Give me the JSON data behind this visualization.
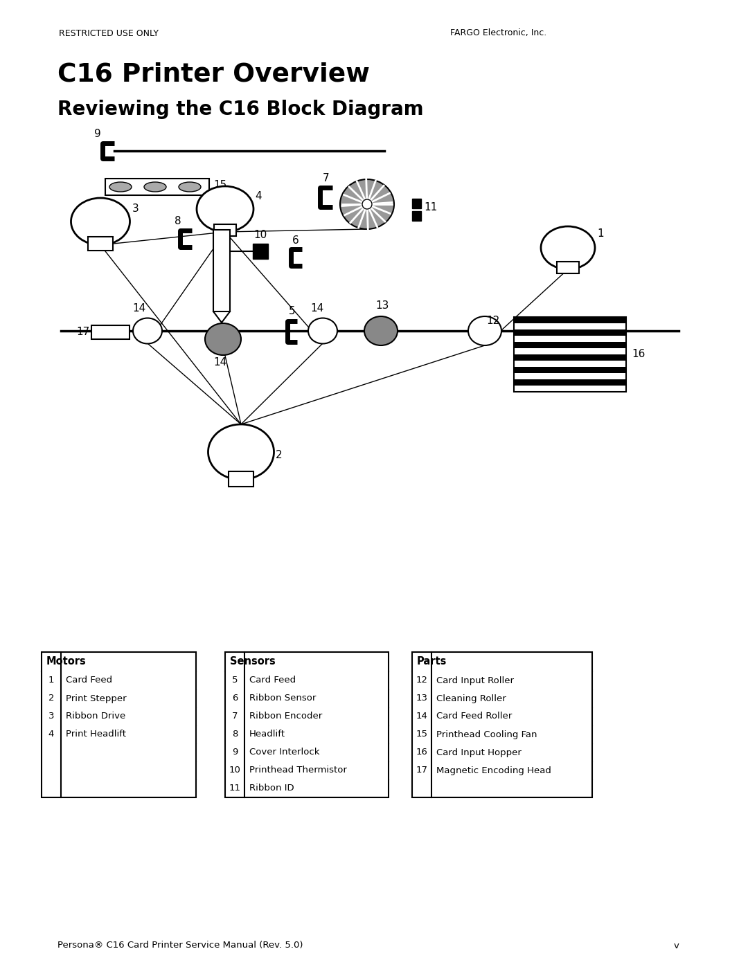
{
  "header_left": "RESTRICTED USE ONLY",
  "header_right": "FARGO Electronic, Inc.",
  "title1": "C16 Printer Overview",
  "title2": "Reviewing the C16 Block Diagram",
  "footer_left": "Persona® C16 Card Printer Service Manual (Rev. 5.0)",
  "footer_right": "v",
  "motors": {
    "header": "Motors",
    "rows": [
      [
        "1",
        "Card Feed"
      ],
      [
        "2",
        "Print Stepper"
      ],
      [
        "3",
        "Ribbon Drive"
      ],
      [
        "4",
        "Print Headlift"
      ],
      [
        "",
        ""
      ],
      [
        "",
        ""
      ],
      [
        "",
        ""
      ]
    ]
  },
  "sensors": {
    "header": "Sensors",
    "rows": [
      [
        "5",
        "Card Feed"
      ],
      [
        "6",
        "Ribbon Sensor"
      ],
      [
        "7",
        "Ribbon Encoder"
      ],
      [
        "8",
        "Headlift"
      ],
      [
        "9",
        "Cover Interlock"
      ],
      [
        "10",
        "Printhead Thermistor"
      ],
      [
        "11",
        "Ribbon ID"
      ]
    ]
  },
  "parts": {
    "header": "Parts",
    "rows": [
      [
        "12",
        "Card Input Roller"
      ],
      [
        "13",
        "Cleaning Roller"
      ],
      [
        "14",
        "Card Feed Roller"
      ],
      [
        "15",
        "Printhead Cooling Fan"
      ],
      [
        "16",
        "Card Input Hopper"
      ],
      [
        "17",
        "Magnetic Encoding Head"
      ],
      [
        "",
        ""
      ]
    ]
  },
  "bg_color": "#ffffff"
}
